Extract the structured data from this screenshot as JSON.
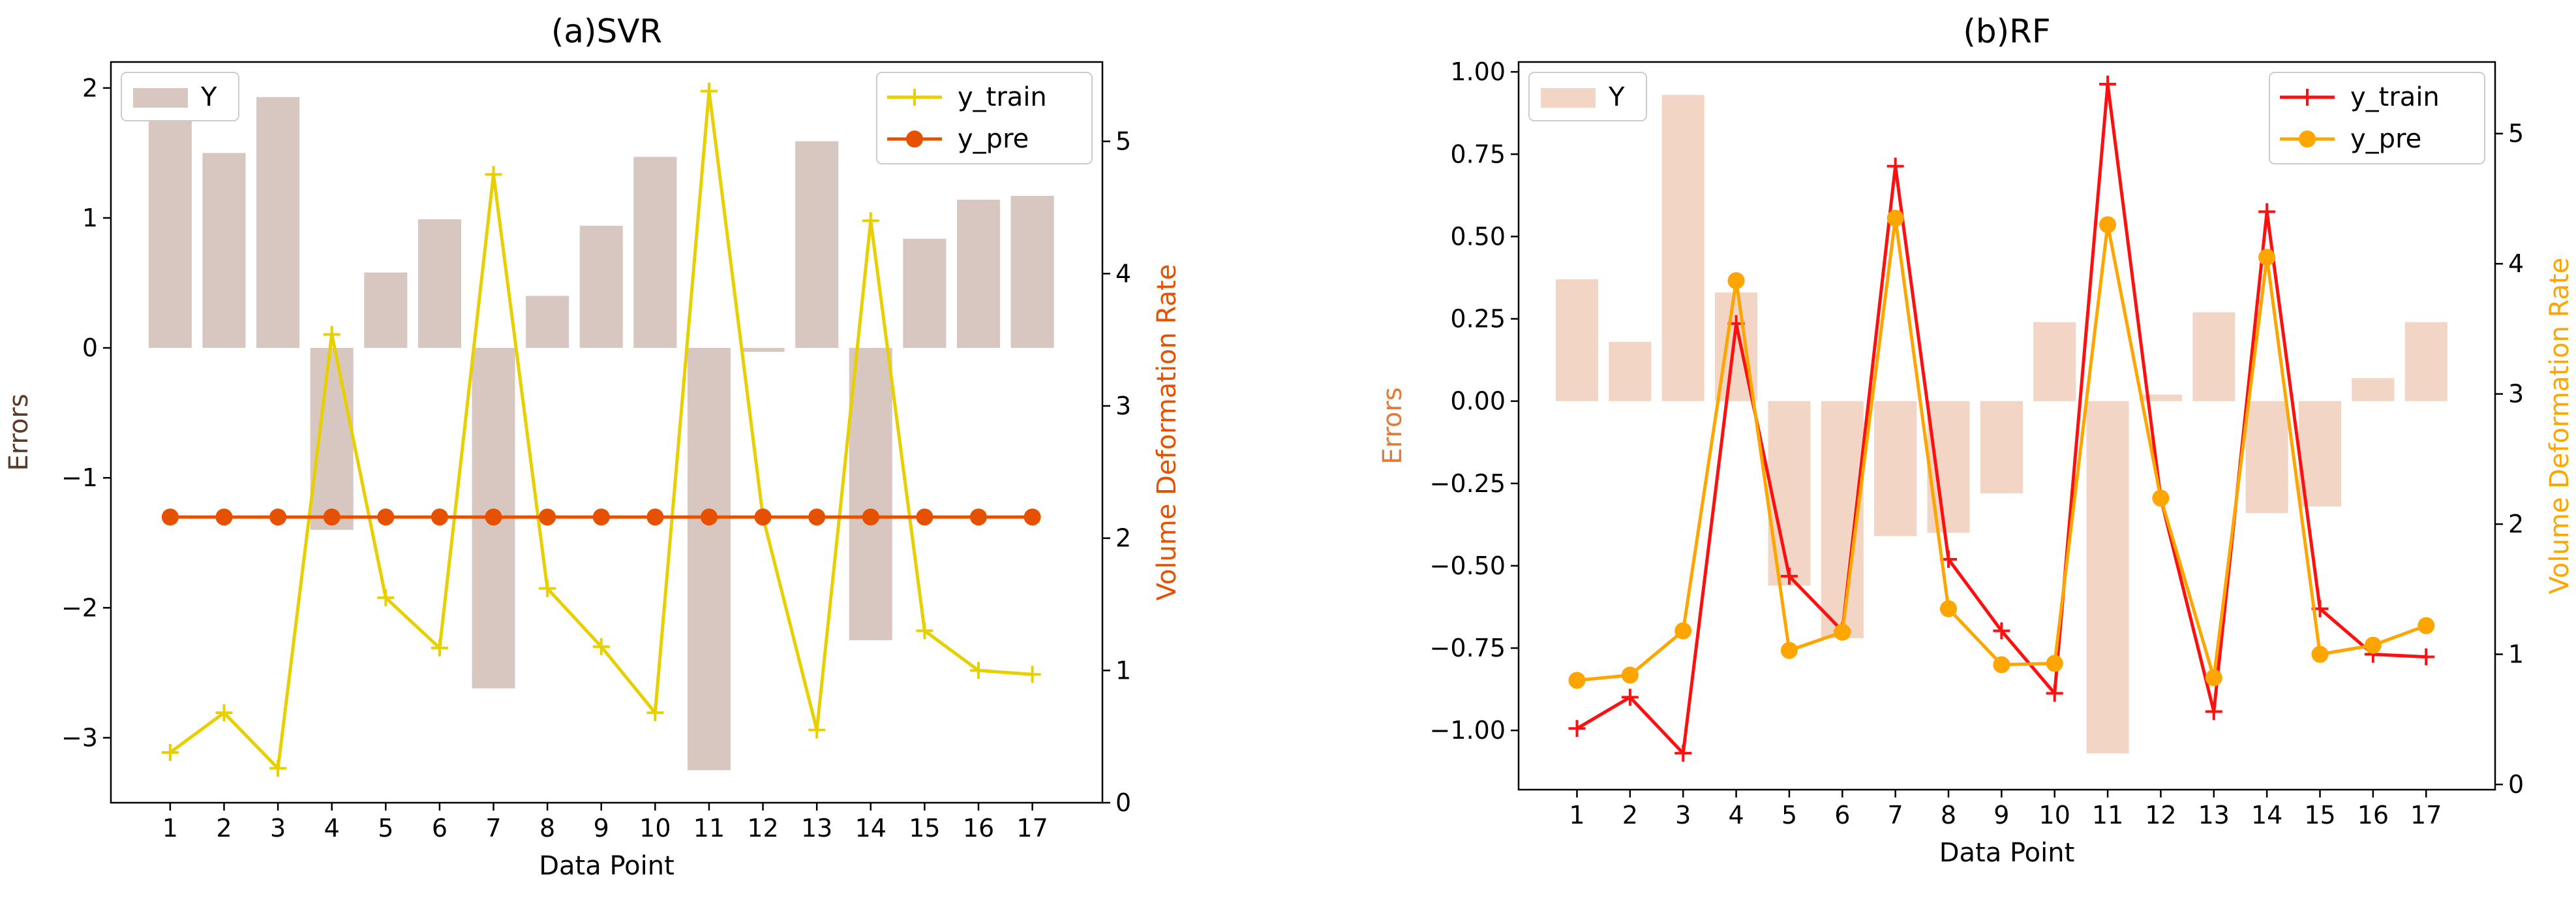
{
  "chart_data": [
    {
      "type": "bar+line",
      "title": "(a)SVR",
      "xlabel": "Data Point",
      "ylabel_left": "Errors",
      "ylabel_right": "Volume Deformation Rate",
      "ylabel_left_color": "#5c3a29",
      "ylabel_right_color": "#e65100",
      "categories": [
        "1",
        "2",
        "3",
        "4",
        "5",
        "6",
        "7",
        "8",
        "9",
        "10",
        "11",
        "12",
        "13",
        "14",
        "15",
        "16",
        "17"
      ],
      "x": [
        1,
        2,
        3,
        4,
        5,
        6,
        7,
        8,
        9,
        10,
        11,
        12,
        13,
        14,
        15,
        16,
        17
      ],
      "ylim_left": [
        -3.5,
        2.2
      ],
      "ylim_right": [
        0,
        5.6
      ],
      "yticks_left": [
        2,
        1,
        0,
        -1,
        -2,
        -3
      ],
      "yticks_right": [
        0,
        1,
        2,
        3,
        4,
        5
      ],
      "bars": {
        "name": "Y",
        "axis": "left",
        "color": "#d7c7c0",
        "values": [
          1.75,
          1.5,
          1.93,
          -1.4,
          0.58,
          0.99,
          -2.62,
          0.4,
          0.94,
          1.47,
          -3.25,
          -0.03,
          1.59,
          -2.25,
          0.84,
          1.14,
          1.17
        ]
      },
      "lines": [
        {
          "name": "y_train",
          "axis": "right",
          "color": "#e8cf00",
          "marker": "plus",
          "values": [
            0.38,
            0.68,
            0.26,
            3.54,
            1.55,
            1.17,
            4.75,
            1.62,
            1.18,
            0.68,
            5.38,
            2.16,
            0.55,
            4.4,
            1.3,
            1.0,
            0.97
          ]
        },
        {
          "name": "y_pre",
          "axis": "right",
          "color": "#e65100",
          "marker": "circle",
          "values": [
            2.16,
            2.16,
            2.16,
            2.16,
            2.16,
            2.16,
            2.16,
            2.16,
            2.16,
            2.16,
            2.16,
            2.16,
            2.16,
            2.16,
            2.16,
            2.16,
            2.16
          ]
        }
      ],
      "legend_bars_position": "top-left",
      "legend_lines_position": "top-right",
      "grid": false
    },
    {
      "type": "bar+line",
      "title": "(b)RF",
      "xlabel": "Data Point",
      "ylabel_left": "Errors",
      "ylabel_right": "Volume Deformation Rate",
      "ylabel_left_color": "#e07b39",
      "ylabel_right_color": "#ffa500",
      "categories": [
        "1",
        "2",
        "3",
        "4",
        "5",
        "6",
        "7",
        "8",
        "9",
        "10",
        "11",
        "12",
        "13",
        "14",
        "15",
        "16",
        "17"
      ],
      "x": [
        1,
        2,
        3,
        4,
        5,
        6,
        7,
        8,
        9,
        10,
        11,
        12,
        13,
        14,
        15,
        16,
        17
      ],
      "ylim_left": [
        -1.18,
        1.03
      ],
      "ylim_right": [
        -0.04,
        5.55
      ],
      "yticks_left": [
        1.0,
        0.75,
        0.5,
        0.25,
        0.0,
        -0.25,
        -0.5,
        -0.75,
        -1.0
      ],
      "yticks_left_labels": [
        "1.00",
        "0.75",
        "0.50",
        "0.25",
        "0.00",
        "−0.25",
        "−0.50",
        "−0.75",
        "−1.00"
      ],
      "yticks_right": [
        0,
        1,
        2,
        3,
        4,
        5
      ],
      "bars": {
        "name": "Y",
        "axis": "left",
        "color": "#f2d5c4",
        "values": [
          0.37,
          0.18,
          0.93,
          0.33,
          -0.56,
          -0.72,
          -0.41,
          -0.4,
          -0.28,
          0.24,
          -1.07,
          0.02,
          0.27,
          -0.34,
          -0.32,
          0.07,
          0.24
        ]
      },
      "lines": [
        {
          "name": "y_train",
          "axis": "right",
          "color": "#ff1010",
          "marker": "plus",
          "values": [
            0.43,
            0.67,
            0.24,
            3.54,
            1.6,
            1.18,
            4.75,
            1.73,
            1.18,
            0.7,
            5.38,
            2.2,
            0.56,
            4.4,
            1.35,
            1.0,
            0.98
          ]
        },
        {
          "name": "y_pre",
          "axis": "right",
          "color": "#ffa500",
          "marker": "circle",
          "values": [
            0.8,
            0.84,
            1.18,
            3.87,
            1.03,
            1.17,
            4.35,
            1.35,
            0.92,
            0.93,
            4.3,
            2.2,
            0.82,
            4.05,
            1.0,
            1.07,
            1.22
          ]
        }
      ],
      "legend_bars_position": "top-left",
      "legend_lines_position": "top-right",
      "grid": false
    }
  ]
}
